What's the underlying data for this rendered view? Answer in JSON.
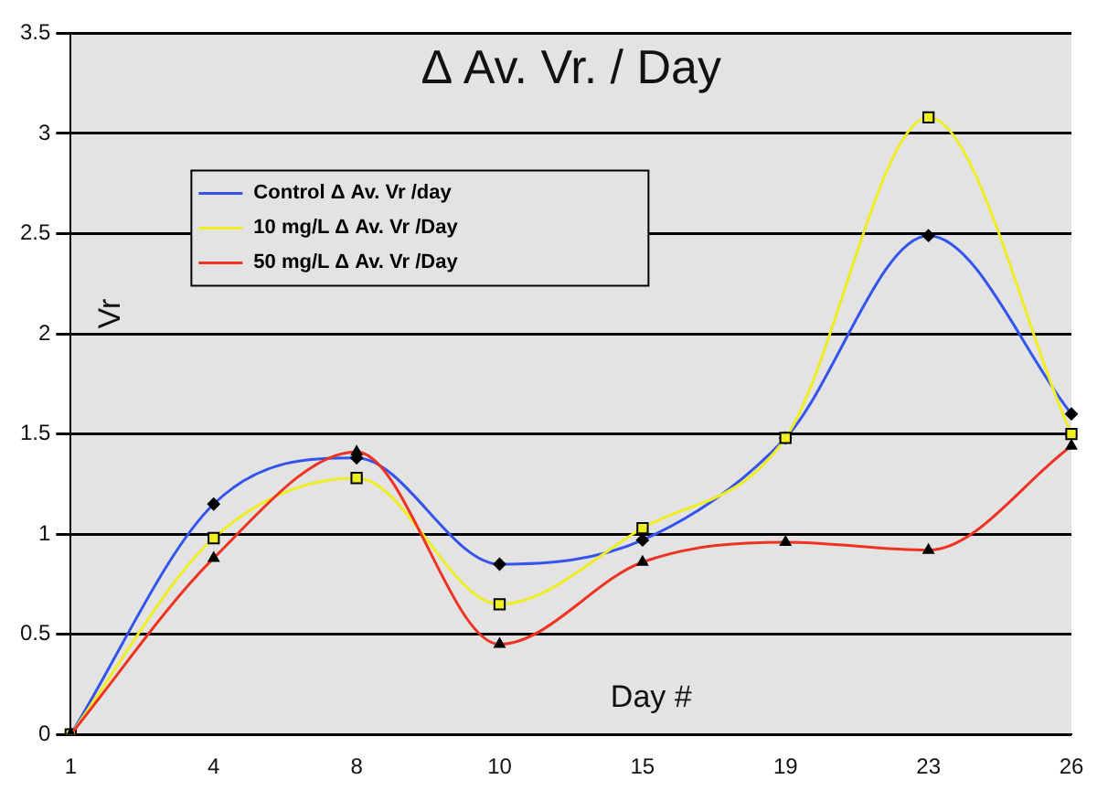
{
  "chart_data": {
    "type": "line",
    "title": "Δ Av. Vr. / Day",
    "xlabel": "Day #",
    "ylabel": "Vr",
    "categories": [
      "1",
      "4",
      "8",
      "10",
      "15",
      "19",
      "23",
      "26"
    ],
    "series": [
      {
        "name": "Control Δ Av. Vr /day",
        "color": "#3355ee",
        "marker": "diamond",
        "values": [
          0,
          1.15,
          1.38,
          0.85,
          0.97,
          1.48,
          2.49,
          1.6
        ]
      },
      {
        "name": "10 mg/L Δ Av. Vr /Day",
        "color": "#eeee22",
        "marker": "square",
        "values": [
          0,
          0.98,
          1.28,
          0.65,
          1.03,
          1.48,
          3.08,
          1.5
        ]
      },
      {
        "name": "50 mg/L Δ Av. Vr /Day",
        "color": "#ee3322",
        "marker": "triangle",
        "values": [
          0,
          0.88,
          1.41,
          0.45,
          0.86,
          0.96,
          0.92,
          1.44
        ]
      }
    ],
    "ylim": [
      0,
      3.5
    ],
    "yticks": [
      0,
      0.5,
      1,
      1.5,
      2,
      2.5,
      3,
      3.5
    ],
    "grid": "y",
    "legend": "top left"
  }
}
